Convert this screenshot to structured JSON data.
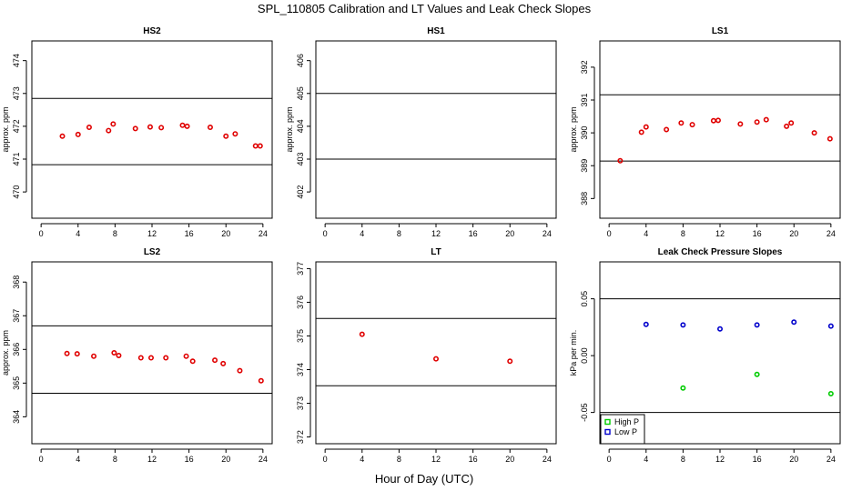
{
  "title": "SPL_110805  Calibration and LT Values and Leak Check Slopes",
  "xlabel": "Hour of Day (UTC)",
  "colors": {
    "red": "#e00000",
    "blue": "#0000cc",
    "green": "#00cc00"
  },
  "chart_data": [
    {
      "type": "scatter",
      "title": "HS2",
      "ylabel": "approx. ppm",
      "xlim": [
        -1,
        25
      ],
      "ylim": [
        469.2,
        474.6
      ],
      "xticks": [
        0,
        4,
        8,
        12,
        16,
        20,
        24
      ],
      "yticks": [
        470,
        471,
        472,
        473,
        474
      ],
      "hlines": [
        470.83,
        472.85
      ],
      "series": [
        {
          "name": "HS2",
          "color": "red",
          "x": [
            2.3,
            4.0,
            5.2,
            7.3,
            7.8,
            10.2,
            11.8,
            13.0,
            15.3,
            15.8,
            18.3,
            20.0,
            21.0,
            23.2,
            23.7
          ],
          "y": [
            471.7,
            471.75,
            471.97,
            471.87,
            472.07,
            471.93,
            471.98,
            471.96,
            472.03,
            472.0,
            471.97,
            471.7,
            471.77,
            471.4,
            471.4
          ]
        }
      ]
    },
    {
      "type": "scatter",
      "title": "HS1",
      "ylabel": "approx. ppm",
      "xlim": [
        -1,
        25
      ],
      "ylim": [
        401.2,
        406.6
      ],
      "xticks": [
        0,
        4,
        8,
        12,
        16,
        20,
        24
      ],
      "yticks": [
        402,
        403,
        404,
        405,
        406
      ],
      "hlines": [
        403.0,
        405.0
      ],
      "series": []
    },
    {
      "type": "scatter",
      "title": "LS1",
      "ylabel": "approx. ppm",
      "xlim": [
        -1,
        25
      ],
      "ylim": [
        387.4,
        392.8
      ],
      "xticks": [
        0,
        4,
        8,
        12,
        16,
        20,
        24
      ],
      "yticks": [
        388,
        389,
        390,
        391,
        392
      ],
      "hlines": [
        389.14,
        391.16
      ],
      "series": [
        {
          "name": "LS1",
          "color": "red",
          "x": [
            1.2,
            3.5,
            4.0,
            6.2,
            7.8,
            9.0,
            11.3,
            11.8,
            14.2,
            16.0,
            17.0,
            19.2,
            19.7,
            22.2,
            23.9
          ],
          "y": [
            389.15,
            390.02,
            390.18,
            390.1,
            390.3,
            390.25,
            390.37,
            390.38,
            390.27,
            390.33,
            390.4,
            390.2,
            390.3,
            390.0,
            389.82
          ]
        }
      ]
    },
    {
      "type": "scatter",
      "title": "LS2",
      "ylabel": "approx. ppm",
      "xlim": [
        -1,
        25
      ],
      "ylim": [
        363.2,
        368.6
      ],
      "xticks": [
        0,
        4,
        8,
        12,
        16,
        20,
        24
      ],
      "yticks": [
        364,
        365,
        366,
        367,
        368
      ],
      "hlines": [
        364.7,
        366.7
      ],
      "series": [
        {
          "name": "LS2",
          "color": "red",
          "x": [
            2.8,
            3.9,
            5.7,
            7.9,
            8.4,
            10.8,
            11.9,
            13.5,
            15.7,
            16.4,
            18.8,
            19.7,
            21.5,
            23.8
          ],
          "y": [
            365.88,
            365.87,
            365.8,
            365.9,
            365.82,
            365.75,
            365.75,
            365.75,
            365.8,
            365.65,
            365.68,
            365.58,
            365.37,
            365.07
          ]
        }
      ]
    },
    {
      "type": "scatter",
      "title": "LT",
      "ylabel": "",
      "xlim": [
        -1,
        25
      ],
      "ylim": [
        371.8,
        377.2
      ],
      "xticks": [
        0,
        4,
        8,
        12,
        16,
        20,
        24
      ],
      "yticks": [
        372,
        373,
        374,
        375,
        376,
        377
      ],
      "hlines": [
        373.52,
        375.52
      ],
      "series": [
        {
          "name": "LT",
          "color": "red",
          "x": [
            4.0,
            12.0,
            20.0
          ],
          "y": [
            375.05,
            374.32,
            374.25
          ]
        }
      ]
    },
    {
      "type": "scatter",
      "title": "Leak Check Pressure Slopes",
      "ylabel": "kPa per min.",
      "xlim": [
        -1,
        25
      ],
      "ylim": [
        -0.0775,
        0.0825
      ],
      "xticks": [
        0,
        4,
        8,
        12,
        16,
        20,
        24
      ],
      "yticks": [
        -0.05,
        0.0,
        0.05
      ],
      "yticklabels": [
        "-0.05",
        "0.00",
        "0.05"
      ],
      "hlines": [
        -0.05,
        0.05
      ],
      "series": [
        {
          "name": "High P",
          "color": "green",
          "x": [
            8.0,
            16.0,
            24.0
          ],
          "y": [
            -0.0285,
            -0.0165,
            -0.0335
          ]
        },
        {
          "name": "Low P",
          "color": "blue",
          "x": [
            4.0,
            8.0,
            12.0,
            16.0,
            20.0,
            24.0
          ],
          "y": [
            0.0275,
            0.027,
            0.0235,
            0.027,
            0.0295,
            0.026
          ]
        }
      ],
      "legend": {
        "position": "bottom-left",
        "entries": [
          "High P",
          "Low P"
        ]
      }
    }
  ]
}
